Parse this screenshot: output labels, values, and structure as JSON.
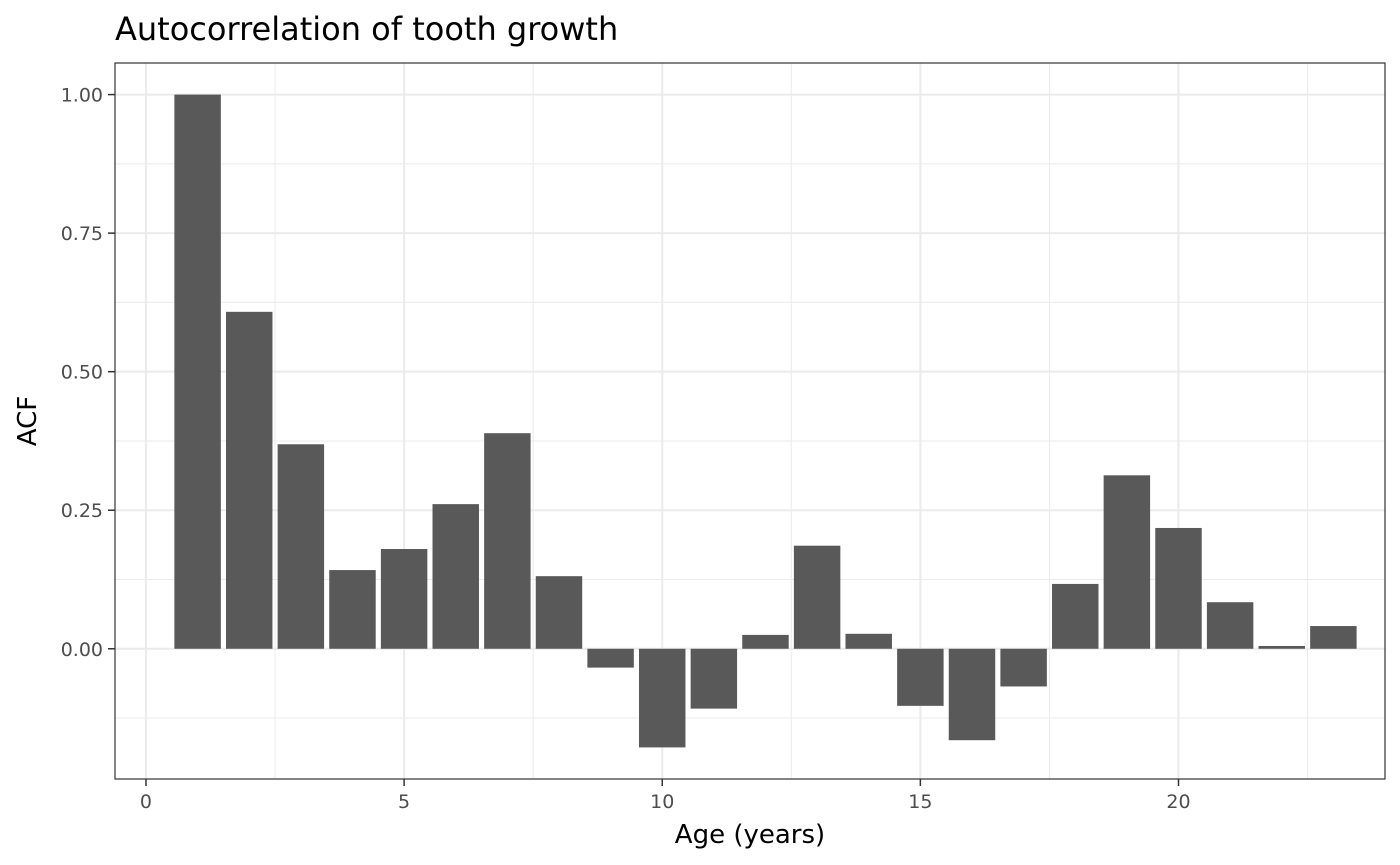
{
  "chart_data": {
    "type": "bar",
    "title": "Autocorrelation of tooth growth",
    "xlabel": "Age (years)",
    "ylabel": "ACF",
    "x": [
      1,
      2,
      3,
      4,
      5,
      6,
      7,
      8,
      9,
      10,
      11,
      12,
      13,
      14,
      15,
      16,
      17,
      18,
      19,
      20,
      21,
      22,
      23
    ],
    "values": [
      1.0,
      0.608,
      0.369,
      0.142,
      0.18,
      0.261,
      0.389,
      0.131,
      -0.034,
      -0.178,
      -0.108,
      0.025,
      0.186,
      0.027,
      -0.103,
      -0.165,
      -0.068,
      0.117,
      0.313,
      0.218,
      0.084,
      0.005,
      0.041
    ],
    "xlim": [
      -0.6,
      24.0
    ],
    "ylim": [
      -0.235,
      1.057
    ],
    "xticks": [
      0,
      5,
      10,
      15,
      20
    ],
    "xtick_labels": [
      "0",
      "5",
      "10",
      "15",
      "20"
    ],
    "yticks": [
      0.0,
      0.25,
      0.5,
      0.75,
      1.0
    ],
    "ytick_labels": [
      "0.00",
      "0.25",
      "0.50",
      "0.75",
      "1.00"
    ],
    "bar_color": "#595959",
    "grid": true,
    "legend": "none"
  }
}
